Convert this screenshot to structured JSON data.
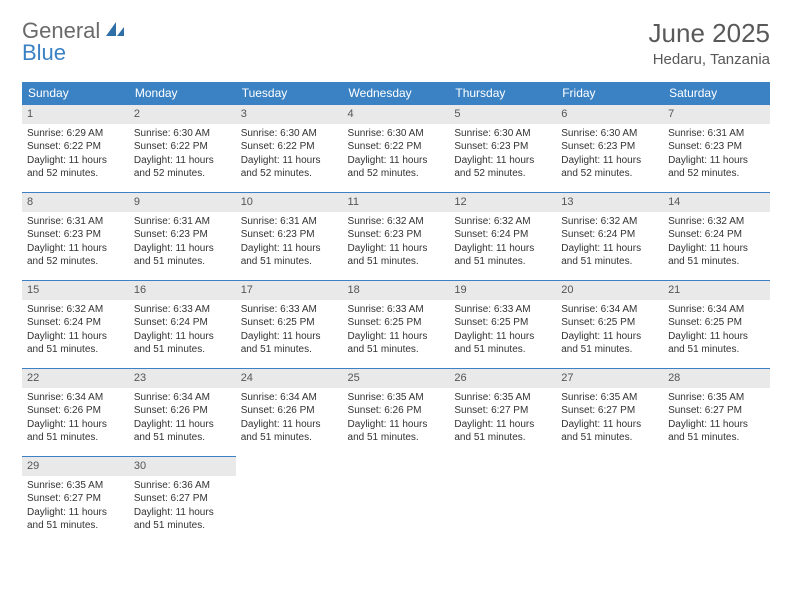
{
  "logo": {
    "text1": "General",
    "text2": "Blue",
    "icon_fill": "#2f6fa8"
  },
  "header": {
    "month_title": "June 2025",
    "location": "Hedaru, Tanzania"
  },
  "colors": {
    "header_bg": "#3b82c4",
    "daynum_bg": "#e9e9e9",
    "daynum_border": "#3b82c4",
    "text": "#333333",
    "title_text": "#595959"
  },
  "weekdays": [
    "Sunday",
    "Monday",
    "Tuesday",
    "Wednesday",
    "Thursday",
    "Friday",
    "Saturday"
  ],
  "rows": [
    [
      {
        "n": "1",
        "sr": "Sunrise: 6:29 AM",
        "ss": "Sunset: 6:22 PM",
        "dl": "Daylight: 11 hours and 52 minutes."
      },
      {
        "n": "2",
        "sr": "Sunrise: 6:30 AM",
        "ss": "Sunset: 6:22 PM",
        "dl": "Daylight: 11 hours and 52 minutes."
      },
      {
        "n": "3",
        "sr": "Sunrise: 6:30 AM",
        "ss": "Sunset: 6:22 PM",
        "dl": "Daylight: 11 hours and 52 minutes."
      },
      {
        "n": "4",
        "sr": "Sunrise: 6:30 AM",
        "ss": "Sunset: 6:22 PM",
        "dl": "Daylight: 11 hours and 52 minutes."
      },
      {
        "n": "5",
        "sr": "Sunrise: 6:30 AM",
        "ss": "Sunset: 6:23 PM",
        "dl": "Daylight: 11 hours and 52 minutes."
      },
      {
        "n": "6",
        "sr": "Sunrise: 6:30 AM",
        "ss": "Sunset: 6:23 PM",
        "dl": "Daylight: 11 hours and 52 minutes."
      },
      {
        "n": "7",
        "sr": "Sunrise: 6:31 AM",
        "ss": "Sunset: 6:23 PM",
        "dl": "Daylight: 11 hours and 52 minutes."
      }
    ],
    [
      {
        "n": "8",
        "sr": "Sunrise: 6:31 AM",
        "ss": "Sunset: 6:23 PM",
        "dl": "Daylight: 11 hours and 52 minutes."
      },
      {
        "n": "9",
        "sr": "Sunrise: 6:31 AM",
        "ss": "Sunset: 6:23 PM",
        "dl": "Daylight: 11 hours and 51 minutes."
      },
      {
        "n": "10",
        "sr": "Sunrise: 6:31 AM",
        "ss": "Sunset: 6:23 PM",
        "dl": "Daylight: 11 hours and 51 minutes."
      },
      {
        "n": "11",
        "sr": "Sunrise: 6:32 AM",
        "ss": "Sunset: 6:23 PM",
        "dl": "Daylight: 11 hours and 51 minutes."
      },
      {
        "n": "12",
        "sr": "Sunrise: 6:32 AM",
        "ss": "Sunset: 6:24 PM",
        "dl": "Daylight: 11 hours and 51 minutes."
      },
      {
        "n": "13",
        "sr": "Sunrise: 6:32 AM",
        "ss": "Sunset: 6:24 PM",
        "dl": "Daylight: 11 hours and 51 minutes."
      },
      {
        "n": "14",
        "sr": "Sunrise: 6:32 AM",
        "ss": "Sunset: 6:24 PM",
        "dl": "Daylight: 11 hours and 51 minutes."
      }
    ],
    [
      {
        "n": "15",
        "sr": "Sunrise: 6:32 AM",
        "ss": "Sunset: 6:24 PM",
        "dl": "Daylight: 11 hours and 51 minutes."
      },
      {
        "n": "16",
        "sr": "Sunrise: 6:33 AM",
        "ss": "Sunset: 6:24 PM",
        "dl": "Daylight: 11 hours and 51 minutes."
      },
      {
        "n": "17",
        "sr": "Sunrise: 6:33 AM",
        "ss": "Sunset: 6:25 PM",
        "dl": "Daylight: 11 hours and 51 minutes."
      },
      {
        "n": "18",
        "sr": "Sunrise: 6:33 AM",
        "ss": "Sunset: 6:25 PM",
        "dl": "Daylight: 11 hours and 51 minutes."
      },
      {
        "n": "19",
        "sr": "Sunrise: 6:33 AM",
        "ss": "Sunset: 6:25 PM",
        "dl": "Daylight: 11 hours and 51 minutes."
      },
      {
        "n": "20",
        "sr": "Sunrise: 6:34 AM",
        "ss": "Sunset: 6:25 PM",
        "dl": "Daylight: 11 hours and 51 minutes."
      },
      {
        "n": "21",
        "sr": "Sunrise: 6:34 AM",
        "ss": "Sunset: 6:25 PM",
        "dl": "Daylight: 11 hours and 51 minutes."
      }
    ],
    [
      {
        "n": "22",
        "sr": "Sunrise: 6:34 AM",
        "ss": "Sunset: 6:26 PM",
        "dl": "Daylight: 11 hours and 51 minutes."
      },
      {
        "n": "23",
        "sr": "Sunrise: 6:34 AM",
        "ss": "Sunset: 6:26 PM",
        "dl": "Daylight: 11 hours and 51 minutes."
      },
      {
        "n": "24",
        "sr": "Sunrise: 6:34 AM",
        "ss": "Sunset: 6:26 PM",
        "dl": "Daylight: 11 hours and 51 minutes."
      },
      {
        "n": "25",
        "sr": "Sunrise: 6:35 AM",
        "ss": "Sunset: 6:26 PM",
        "dl": "Daylight: 11 hours and 51 minutes."
      },
      {
        "n": "26",
        "sr": "Sunrise: 6:35 AM",
        "ss": "Sunset: 6:27 PM",
        "dl": "Daylight: 11 hours and 51 minutes."
      },
      {
        "n": "27",
        "sr": "Sunrise: 6:35 AM",
        "ss": "Sunset: 6:27 PM",
        "dl": "Daylight: 11 hours and 51 minutes."
      },
      {
        "n": "28",
        "sr": "Sunrise: 6:35 AM",
        "ss": "Sunset: 6:27 PM",
        "dl": "Daylight: 11 hours and 51 minutes."
      }
    ],
    [
      {
        "n": "29",
        "sr": "Sunrise: 6:35 AM",
        "ss": "Sunset: 6:27 PM",
        "dl": "Daylight: 11 hours and 51 minutes."
      },
      {
        "n": "30",
        "sr": "Sunrise: 6:36 AM",
        "ss": "Sunset: 6:27 PM",
        "dl": "Daylight: 11 hours and 51 minutes."
      },
      null,
      null,
      null,
      null,
      null
    ]
  ]
}
